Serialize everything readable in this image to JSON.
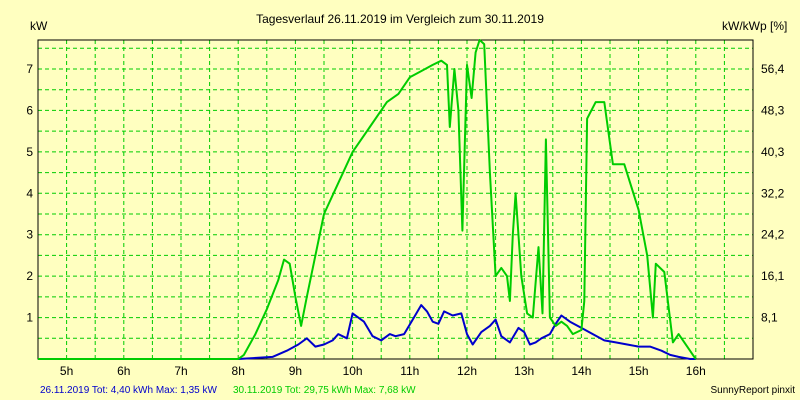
{
  "chart_data": {
    "type": "line",
    "title": "Tagesverlauf 26.11.2019 im Vergleich zum 30.11.2019",
    "y_left_label": "kW",
    "y_right_label": "kW/kWp [%]",
    "x_ticks": [
      "5h",
      "6h",
      "7h",
      "8h",
      "9h",
      "10h",
      "11h",
      "12h",
      "13h",
      "14h",
      "15h",
      "16h"
    ],
    "x_range_hours": [
      4.5,
      17.0
    ],
    "y_left_ticks": [
      "1",
      "2",
      "3",
      "4",
      "5",
      "6",
      "7"
    ],
    "y_left_range": [
      0,
      7.7
    ],
    "y_right_ticks": [
      "8,1",
      "16,1",
      "24,2",
      "32,2",
      "40,3",
      "48,3",
      "56,4"
    ],
    "grid": true,
    "legend": [
      {
        "text": "26.11.2019 Tot: 4,40 kWh Max: 1,35 kW",
        "color": "#0000cc"
      },
      {
        "text": "30.11.2019 Tot: 29,75 kWh Max: 7,68 kW",
        "color": "#00cc00"
      }
    ],
    "credit": "SunnyReport pinxit",
    "series": [
      {
        "name": "26.11.2019",
        "color": "#0000cc",
        "x": [
          4.5,
          8.0,
          8.6,
          8.85,
          9.05,
          9.2,
          9.35,
          9.5,
          9.65,
          9.75,
          9.9,
          10.0,
          10.1,
          10.2,
          10.35,
          10.5,
          10.65,
          10.75,
          10.9,
          11.05,
          11.2,
          11.3,
          11.4,
          11.5,
          11.6,
          11.75,
          11.9,
          12.0,
          12.1,
          12.25,
          12.4,
          12.5,
          12.6,
          12.75,
          12.9,
          13.0,
          13.1,
          13.2,
          13.3,
          13.45,
          13.55,
          13.65,
          13.8,
          14.0,
          14.2,
          14.4,
          14.6,
          14.8,
          15.0,
          15.2,
          15.4,
          15.55,
          15.7,
          15.9,
          16.0
        ],
        "y": [
          0,
          0,
          0.05,
          0.2,
          0.35,
          0.5,
          0.3,
          0.35,
          0.45,
          0.6,
          0.5,
          1.1,
          1.0,
          0.9,
          0.55,
          0.45,
          0.6,
          0.55,
          0.6,
          0.95,
          1.3,
          1.15,
          0.9,
          0.85,
          1.15,
          1.05,
          1.1,
          0.6,
          0.35,
          0.65,
          0.8,
          0.95,
          0.55,
          0.4,
          0.75,
          0.65,
          0.35,
          0.4,
          0.5,
          0.6,
          0.85,
          1.05,
          0.9,
          0.75,
          0.6,
          0.45,
          0.4,
          0.35,
          0.3,
          0.3,
          0.2,
          0.1,
          0.05,
          0.0,
          0.0
        ]
      },
      {
        "name": "30.11.2019",
        "color": "#00cc00",
        "x": [
          4.5,
          8.0,
          8.1,
          8.3,
          8.5,
          8.7,
          8.8,
          8.9,
          9.0,
          9.1,
          9.2,
          9.5,
          9.8,
          10.0,
          10.3,
          10.6,
          10.8,
          11.0,
          11.2,
          11.4,
          11.55,
          11.65,
          11.7,
          11.78,
          11.85,
          11.92,
          12.0,
          12.08,
          12.15,
          12.22,
          12.3,
          12.4,
          12.5,
          12.6,
          12.7,
          12.75,
          12.8,
          12.85,
          12.95,
          13.05,
          13.15,
          13.25,
          13.32,
          13.38,
          13.45,
          13.55,
          13.65,
          13.75,
          13.85,
          14.0,
          14.05,
          14.1,
          14.25,
          14.4,
          14.55,
          14.75,
          15.0,
          15.15,
          15.25,
          15.3,
          15.45,
          15.6,
          15.7,
          15.85,
          15.95,
          16.0
        ],
        "y": [
          0,
          0,
          0.1,
          0.6,
          1.2,
          1.9,
          2.4,
          2.3,
          1.5,
          0.8,
          1.5,
          3.5,
          4.4,
          5.0,
          5.6,
          6.2,
          6.4,
          6.8,
          6.95,
          7.1,
          7.2,
          7.1,
          5.6,
          7.0,
          6.0,
          3.1,
          7.1,
          6.3,
          7.4,
          7.7,
          7.6,
          4.5,
          2.0,
          2.2,
          2.0,
          1.4,
          3.0,
          4.0,
          2.0,
          1.1,
          1.0,
          2.7,
          1.1,
          5.3,
          1.0,
          0.8,
          0.9,
          0.8,
          0.6,
          0.7,
          1.4,
          5.8,
          6.2,
          6.2,
          4.7,
          4.7,
          3.6,
          2.5,
          1.0,
          2.3,
          2.1,
          0.4,
          0.6,
          0.3,
          0.1,
          0.0
        ]
      }
    ]
  }
}
